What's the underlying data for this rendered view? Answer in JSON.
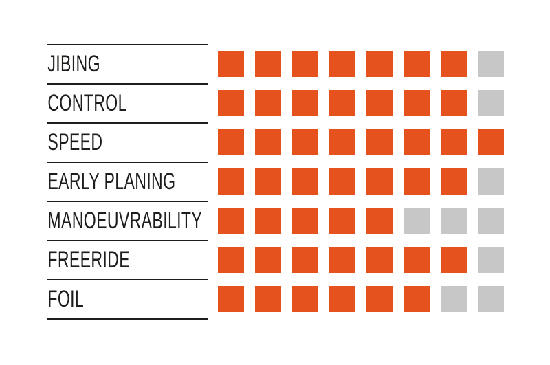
{
  "colors": {
    "filled": "#E5521D",
    "empty": "#C7C7C7",
    "line": "#1D1D1B",
    "text": "#1D1D1B"
  },
  "rating": {
    "max": 8
  },
  "rows": [
    {
      "label": "JIBING",
      "value": 7
    },
    {
      "label": "CONTROL",
      "value": 7
    },
    {
      "label": "SPEED",
      "value": 8
    },
    {
      "label": "EARLY PLANING",
      "value": 7
    },
    {
      "label": "MANOEUVRABILITY",
      "value": 5
    },
    {
      "label": "FREERIDE",
      "value": 7
    },
    {
      "label": "FOIL",
      "value": 6
    }
  ],
  "chart_data": {
    "type": "bar",
    "categories": [
      "JIBING",
      "CONTROL",
      "SPEED",
      "EARLY PLANING",
      "MANOEUVRABILITY",
      "FREERIDE",
      "FOIL"
    ],
    "values": [
      7,
      7,
      8,
      7,
      5,
      7,
      6
    ],
    "title": "",
    "xlabel": "",
    "ylabel": "",
    "xlim": [
      0,
      8
    ],
    "legend": "none",
    "grid": "off",
    "notes": "Each row rated with 8 squares; filled squares orange, unfilled gray; horizontal rules only under label column"
  }
}
